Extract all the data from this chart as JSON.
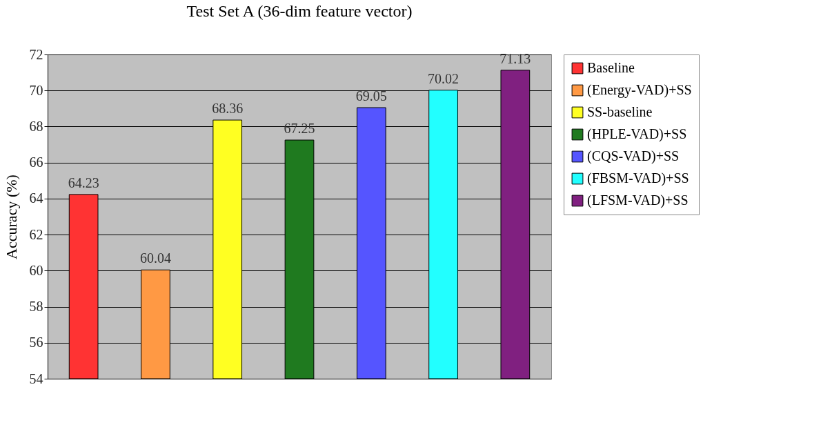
{
  "chart_data": {
    "type": "bar",
    "title": "Test Set A (36-dim feature vector)",
    "ylabel": "Accuracy (%)",
    "categories": [
      null,
      null,
      null,
      null,
      null,
      null,
      null
    ],
    "series": [
      {
        "name": "Baseline",
        "color": "#ff3333",
        "values": [
          64.23,
          null,
          null,
          null,
          null,
          null,
          null
        ]
      },
      {
        "name": "(Energy-VAD)+SS",
        "color": "#ff9944",
        "values": [
          null,
          60.04,
          null,
          null,
          null,
          null,
          null
        ]
      },
      {
        "name": "SS-baseline",
        "color": "#ffff22",
        "values": [
          null,
          null,
          68.36,
          null,
          null,
          null,
          null
        ]
      },
      {
        "name": "(HPLE-VAD)+SS",
        "color": "#1f7a1f",
        "values": [
          null,
          null,
          null,
          67.25,
          null,
          null,
          null
        ]
      },
      {
        "name": "(CQS-VAD)+SS",
        "color": "#5555ff",
        "values": [
          null,
          null,
          null,
          null,
          69.05,
          null,
          null
        ]
      },
      {
        "name": "(FBSM-VAD)+SS",
        "color": "#22ffff",
        "values": [
          null,
          null,
          null,
          null,
          null,
          70.02,
          null
        ]
      },
      {
        "name": "(LFSM-VAD)+SS",
        "color": "#802080",
        "values": [
          null,
          null,
          null,
          null,
          null,
          null,
          71.13
        ]
      }
    ],
    "ylim": [
      54,
      72
    ],
    "yticks": [
      54,
      56,
      58,
      60,
      62,
      64,
      66,
      68,
      70,
      72
    ],
    "grid": "y",
    "legend": "right",
    "data_labels": true,
    "tick_labels": "y"
  }
}
